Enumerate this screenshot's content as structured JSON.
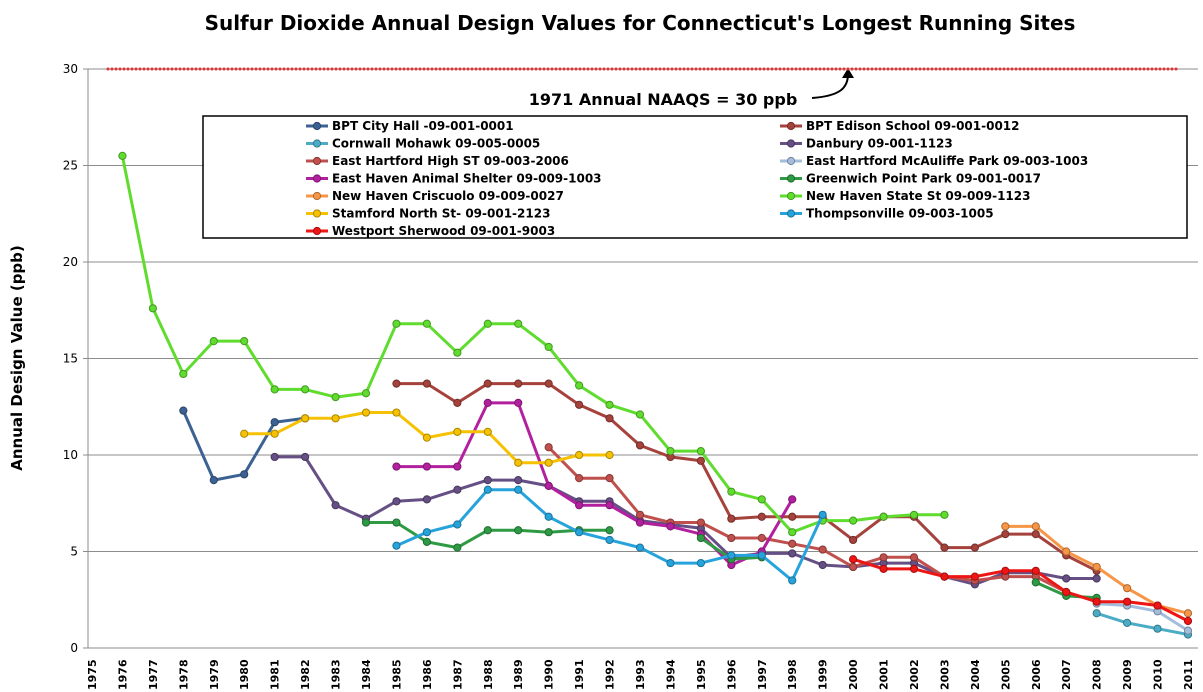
{
  "chart_data": {
    "type": "line",
    "title": "Sulfur Dioxide Annual Design Values for Connecticut's Longest Running Sites",
    "y_label": "Annual Design Value (ppb)",
    "ylim": [
      0,
      30
    ],
    "yticks": [
      0,
      5,
      10,
      15,
      20,
      25,
      30
    ],
    "grid": true,
    "legend": "top",
    "reference_line": {
      "value": 30,
      "color": "#e03030",
      "label": "1971 Annual NAAQS = 30 ppb"
    },
    "categories": [
      "1975",
      "1976",
      "1977",
      "1978",
      "1979",
      "1980",
      "1981",
      "1982",
      "1983",
      "1984",
      "1985",
      "1986",
      "1987",
      "1988",
      "1989",
      "1990",
      "1991",
      "1992",
      "1993",
      "1994",
      "1995",
      "1996",
      "1997",
      "1998",
      "1999",
      "2000",
      "2001",
      "2002",
      "2003",
      "2004",
      "2005",
      "2006",
      "2007",
      "2008",
      "2009",
      "2010",
      "2011"
    ],
    "series": [
      {
        "name": "BPT City Hall -09-001-0001",
        "color": "#3b6293",
        "values": [
          null,
          null,
          null,
          12.3,
          8.7,
          9.0,
          11.7,
          11.9,
          null,
          null,
          null,
          null,
          null,
          null,
          null,
          null,
          null,
          null,
          null,
          null,
          null,
          null,
          null,
          null,
          null,
          null,
          null,
          null,
          null,
          null,
          null,
          null,
          null,
          null,
          null,
          null,
          null
        ]
      },
      {
        "name": "BPT Edison School 09-001-0012",
        "color": "#a5423c",
        "values": [
          null,
          null,
          null,
          null,
          null,
          null,
          null,
          null,
          null,
          null,
          13.7,
          13.7,
          12.7,
          13.7,
          13.7,
          13.7,
          12.6,
          11.9,
          10.5,
          9.9,
          9.7,
          6.7,
          6.8,
          6.8,
          6.8,
          5.6,
          6.8,
          6.8,
          5.2,
          5.2,
          5.9,
          5.9,
          4.8,
          4.0,
          null,
          null,
          null
        ]
      },
      {
        "name": "Cornwall Mohawk 09-005-0005",
        "color": "#4bacc6",
        "values": [
          null,
          null,
          null,
          null,
          null,
          null,
          null,
          null,
          null,
          null,
          null,
          null,
          null,
          null,
          null,
          null,
          null,
          null,
          null,
          null,
          null,
          null,
          null,
          null,
          null,
          null,
          null,
          null,
          null,
          null,
          null,
          null,
          null,
          1.8,
          1.3,
          1.0,
          0.7
        ]
      },
      {
        "name": "Danbury  09-001-1123",
        "color": "#654f84",
        "values": [
          null,
          null,
          null,
          null,
          null,
          null,
          9.9,
          9.9,
          7.4,
          6.7,
          7.6,
          7.7,
          8.2,
          8.7,
          8.7,
          8.4,
          7.6,
          7.6,
          6.6,
          6.4,
          6.2,
          4.7,
          4.9,
          4.9,
          4.3,
          4.2,
          4.4,
          4.4,
          3.7,
          3.3,
          3.9,
          3.9,
          3.6,
          3.6,
          null,
          null,
          null
        ]
      },
      {
        "name": "East Hartford High ST 09-003-2006",
        "color": "#c0504d",
        "values": [
          null,
          null,
          null,
          null,
          null,
          null,
          null,
          null,
          null,
          null,
          null,
          null,
          null,
          null,
          null,
          10.4,
          8.8,
          8.8,
          6.9,
          6.5,
          6.5,
          5.7,
          5.7,
          5.4,
          5.1,
          4.2,
          4.7,
          4.7,
          3.7,
          3.5,
          3.7,
          3.7,
          2.9,
          2.4,
          null,
          null,
          null
        ]
      },
      {
        "name": "East Hartford McAuliffe Park 09-003-1003",
        "color": "#a5bddc",
        "values": [
          null,
          null,
          null,
          null,
          null,
          null,
          null,
          null,
          null,
          null,
          null,
          null,
          null,
          null,
          null,
          null,
          null,
          null,
          null,
          null,
          null,
          null,
          null,
          null,
          null,
          null,
          null,
          null,
          null,
          null,
          null,
          null,
          null,
          2.3,
          2.2,
          1.9,
          0.9
        ]
      },
      {
        "name": "East Haven Animal Shelter 09-009-1003",
        "color": "#b3209f",
        "values": [
          null,
          null,
          null,
          null,
          null,
          null,
          null,
          null,
          null,
          null,
          9.4,
          9.4,
          9.4,
          12.7,
          12.7,
          8.4,
          7.4,
          7.4,
          6.5,
          6.3,
          5.9,
          4.3,
          5.0,
          7.7,
          null,
          null,
          null,
          null,
          null,
          null,
          null,
          null,
          null,
          null,
          null,
          null,
          null
        ]
      },
      {
        "name": "Greenwich Point Park 09-001-0017",
        "color": "#2e9a44",
        "values": [
          null,
          null,
          null,
          null,
          null,
          null,
          null,
          null,
          null,
          6.5,
          6.5,
          5.5,
          5.2,
          6.1,
          6.1,
          6.0,
          6.1,
          6.1,
          null,
          null,
          5.7,
          4.6,
          4.7,
          null,
          null,
          null,
          null,
          null,
          null,
          null,
          null,
          3.4,
          2.7,
          2.6,
          null,
          null,
          null
        ]
      },
      {
        "name": "New Haven Criscuolo 09-009-0027",
        "color": "#f79646",
        "values": [
          null,
          null,
          null,
          null,
          null,
          null,
          null,
          null,
          null,
          null,
          null,
          null,
          null,
          null,
          null,
          null,
          null,
          null,
          null,
          null,
          null,
          null,
          null,
          null,
          null,
          null,
          null,
          null,
          null,
          null,
          6.3,
          6.3,
          5.0,
          4.2,
          3.1,
          2.2,
          1.8
        ]
      },
      {
        "name": "New Haven State St 09-009-1123",
        "color": "#5fdc2e",
        "values": [
          null,
          25.5,
          17.6,
          14.2,
          15.9,
          15.9,
          13.4,
          13.4,
          13.0,
          13.2,
          16.8,
          16.8,
          15.3,
          16.8,
          16.8,
          15.6,
          13.6,
          12.6,
          12.1,
          10.2,
          10.2,
          8.1,
          7.7,
          6.0,
          6.6,
          6.6,
          6.8,
          6.9,
          6.9,
          null,
          null,
          null,
          null,
          null,
          null,
          null,
          null
        ]
      },
      {
        "name": "Stamford North St- 09-001-2123",
        "color": "#f5c100",
        "values": [
          null,
          null,
          null,
          null,
          null,
          11.1,
          11.1,
          11.9,
          11.9,
          12.2,
          12.2,
          10.9,
          11.2,
          11.2,
          9.6,
          9.6,
          10.0,
          10.0,
          null,
          null,
          null,
          null,
          null,
          null,
          null,
          null,
          null,
          null,
          null,
          null,
          null,
          null,
          null,
          null,
          null,
          null,
          null
        ]
      },
      {
        "name": "Thompsonville 09-003-1005",
        "color": "#27a3dc",
        "values": [
          null,
          null,
          null,
          null,
          null,
          null,
          null,
          null,
          null,
          null,
          5.3,
          6.0,
          6.4,
          8.2,
          8.2,
          6.8,
          6.0,
          5.6,
          5.2,
          4.4,
          4.4,
          4.8,
          4.8,
          3.5,
          6.9,
          null,
          null,
          null,
          null,
          null,
          null,
          null,
          null,
          null,
          null,
          null,
          null
        ]
      },
      {
        "name": "Westport Sherwood 09-001-9003",
        "color": "#ee1515",
        "values": [
          null,
          null,
          null,
          null,
          null,
          null,
          null,
          null,
          null,
          null,
          null,
          null,
          null,
          null,
          null,
          null,
          null,
          null,
          null,
          null,
          null,
          null,
          null,
          null,
          null,
          4.6,
          4.1,
          4.1,
          3.7,
          3.7,
          4.0,
          4.0,
          2.9,
          2.4,
          2.4,
          2.2,
          1.4
        ]
      }
    ]
  }
}
